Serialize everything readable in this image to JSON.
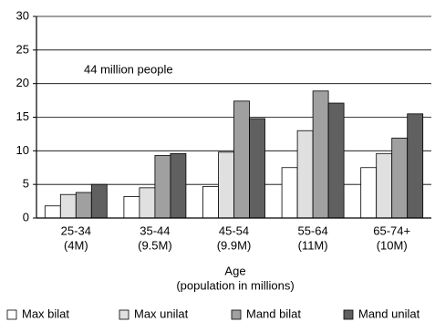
{
  "chart_data": {
    "type": "bar",
    "categories": [
      [
        "25-34",
        "(4M)"
      ],
      [
        "35-44",
        "(9.5M)"
      ],
      [
        "45-54",
        "(9.9M)"
      ],
      [
        "55-64",
        "(11M)"
      ],
      [
        "65-74+",
        "(10M)"
      ]
    ],
    "series": [
      {
        "name": "Max bilat",
        "color": "#ffffff",
        "values": [
          1.8,
          3.2,
          4.7,
          7.5,
          7.5
        ]
      },
      {
        "name": "Max unilat",
        "color": "#e0e0e0",
        "values": [
          3.5,
          4.5,
          9.8,
          13.0,
          9.6
        ]
      },
      {
        "name": "Mand bilat",
        "color": "#a0a0a0",
        "values": [
          3.8,
          9.3,
          17.4,
          18.9,
          11.9
        ]
      },
      {
        "name": "Mand unilat",
        "color": "#606060",
        "values": [
          5.0,
          9.6,
          14.8,
          17.1,
          15.5
        ]
      }
    ],
    "annotation": "44 million people",
    "x_label": [
      "Age",
      "(population in millions)"
    ],
    "ylim": [
      0,
      30
    ],
    "yticks": [
      0,
      5,
      10,
      15,
      20,
      25,
      30
    ],
    "grid": true,
    "legend": "bottom"
  }
}
